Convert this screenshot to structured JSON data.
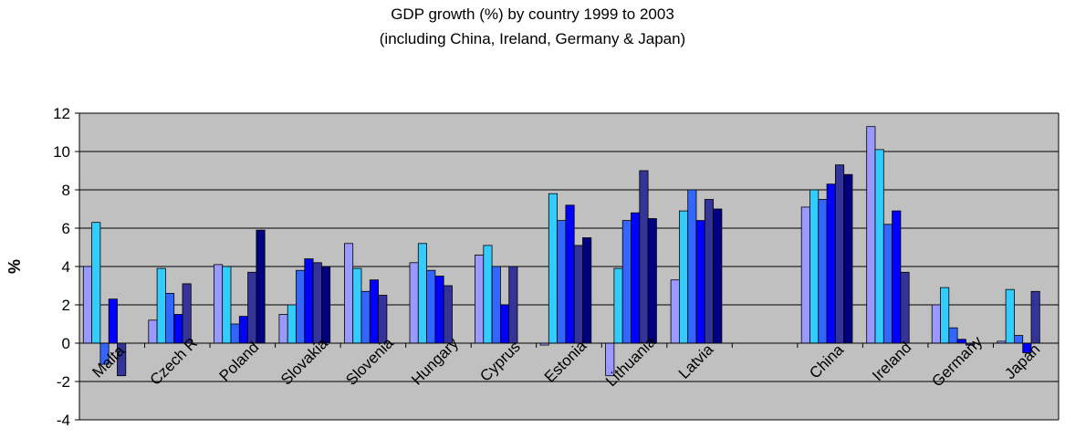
{
  "chart_data": {
    "type": "bar",
    "title": "GDP growth (%) by country 1999 to 2003",
    "subtitle": "(including China, Ireland, Germany & Japan)",
    "xlabel": "",
    "ylabel": "%",
    "ylim": [
      -4,
      12
    ],
    "yticks": [
      "-4",
      "-2",
      "0",
      "2",
      "4",
      "6",
      "8",
      "10",
      "12"
    ],
    "grid": true,
    "legend": "none",
    "categories": [
      "Malta",
      "Czech R",
      "Poland",
      "Slovakia",
      "Slovenia",
      "Hungary",
      "Cyprus",
      "Estonia",
      "Lithuania",
      "Latvia",
      "",
      "China",
      "Ireland",
      "Germany",
      "Japan"
    ],
    "series": [
      {
        "color": "#9999ff",
        "values": [
          4.0,
          1.2,
          4.1,
          1.5,
          5.2,
          4.2,
          4.6,
          -0.1,
          -1.7,
          3.3,
          null,
          7.1,
          11.3,
          2.0,
          0.1
        ]
      },
      {
        "color": "#33ccff",
        "values": [
          6.3,
          3.9,
          4.0,
          2.0,
          3.9,
          5.2,
          5.1,
          7.8,
          3.9,
          6.9,
          null,
          8.0,
          10.1,
          2.9,
          2.8
        ]
      },
      {
        "color": "#3366ff",
        "values": [
          -1.1,
          2.6,
          1.0,
          3.8,
          2.7,
          3.8,
          4.0,
          6.4,
          6.4,
          8.0,
          null,
          7.5,
          6.2,
          0.8,
          0.4
        ]
      },
      {
        "color": "#0000ff",
        "values": [
          2.3,
          1.5,
          1.4,
          4.4,
          3.3,
          3.5,
          2.0,
          7.2,
          6.8,
          6.4,
          null,
          8.3,
          6.9,
          0.2,
          -0.5
        ]
      },
      {
        "color": "#333399",
        "values": [
          -1.7,
          3.1,
          3.7,
          4.2,
          2.5,
          3.0,
          4.0,
          5.1,
          9.0,
          7.5,
          null,
          9.3,
          3.7,
          -0.1,
          2.7
        ]
      },
      {
        "color": "#000080",
        "values": [
          null,
          null,
          5.9,
          4.0,
          null,
          null,
          null,
          5.5,
          6.5,
          7.0,
          null,
          8.8,
          null,
          null,
          null
        ]
      }
    ],
    "colors": {
      "plot_background": "#c0c0c0",
      "gridline": "#000000"
    }
  }
}
